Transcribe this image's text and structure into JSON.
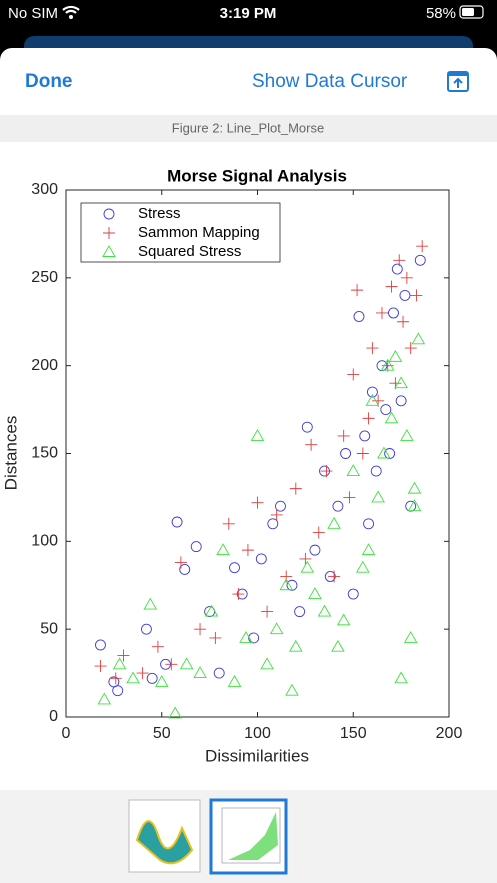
{
  "status": {
    "carrier": "No SIM",
    "time": "3:19 PM",
    "battery": "58%"
  },
  "toolbar": {
    "done": "Done",
    "cursor": "Show Data Cursor"
  },
  "figure_label": "Figure 2: Line_Plot_Morse",
  "chart_data": {
    "type": "scatter",
    "title": "Morse Signal Analysis",
    "x_label": "Dissimilarities",
    "y_label": "Distances",
    "xlim": [
      0,
      200
    ],
    "xticks": [
      0,
      50,
      100,
      150,
      200
    ],
    "ylim": [
      0,
      300
    ],
    "yticks": [
      0,
      50,
      100,
      150,
      200,
      250,
      300
    ],
    "legend": "upper left",
    "series": [
      {
        "name": "Stress",
        "color": "#3c3cd8",
        "marker": "circle",
        "x": [
          18,
          25,
          27,
          42,
          45,
          52,
          58,
          62,
          68,
          75,
          80,
          88,
          92,
          98,
          102,
          108,
          112,
          118,
          122,
          126,
          130,
          135,
          138,
          142,
          146,
          150,
          153,
          156,
          158,
          160,
          162,
          165,
          167,
          169,
          171,
          173,
          175,
          177,
          180,
          185
        ],
        "values": [
          41,
          20,
          15,
          50,
          22,
          30,
          111,
          84,
          97,
          60,
          25,
          85,
          70,
          45,
          90,
          110,
          120,
          75,
          60,
          165,
          95,
          140,
          80,
          120,
          150,
          70,
          228,
          160,
          110,
          185,
          140,
          200,
          175,
          150,
          230,
          255,
          180,
          240,
          120,
          260
        ]
      },
      {
        "name": "Sammon Mapping",
        "color": "#e03c3c",
        "marker": "plus",
        "x": [
          18,
          26,
          30,
          40,
          48,
          55,
          60,
          70,
          78,
          85,
          90,
          95,
          100,
          105,
          110,
          115,
          120,
          125,
          128,
          132,
          136,
          140,
          145,
          148,
          150,
          152,
          155,
          158,
          160,
          163,
          165,
          168,
          170,
          172,
          174,
          176,
          178,
          180,
          183,
          186
        ],
        "values": [
          29,
          22,
          35,
          25,
          40,
          30,
          88,
          50,
          45,
          110,
          70,
          95,
          122,
          60,
          115,
          80,
          130,
          90,
          155,
          105,
          140,
          80,
          160,
          125,
          195,
          243,
          150,
          170,
          210,
          180,
          230,
          200,
          245,
          190,
          260,
          225,
          250,
          210,
          240,
          268
        ]
      },
      {
        "name": "Squared Stress",
        "color": "#3ce03c",
        "marker": "triangle",
        "x": [
          20,
          28,
          35,
          44,
          50,
          57,
          63,
          70,
          76,
          82,
          88,
          94,
          100,
          105,
          110,
          115,
          120,
          126,
          130,
          135,
          140,
          145,
          150,
          155,
          160,
          163,
          166,
          168,
          170,
          172,
          175,
          178,
          180,
          182,
          184,
          118,
          142,
          158,
          175,
          182
        ],
        "values": [
          10,
          30,
          22,
          64,
          20,
          2,
          30,
          25,
          60,
          95,
          20,
          45,
          160,
          30,
          50,
          75,
          40,
          85,
          70,
          60,
          110,
          55,
          140,
          85,
          180,
          125,
          150,
          200,
          170,
          205,
          190,
          160,
          45,
          130,
          215,
          15,
          40,
          95,
          22,
          120
        ]
      }
    ]
  }
}
